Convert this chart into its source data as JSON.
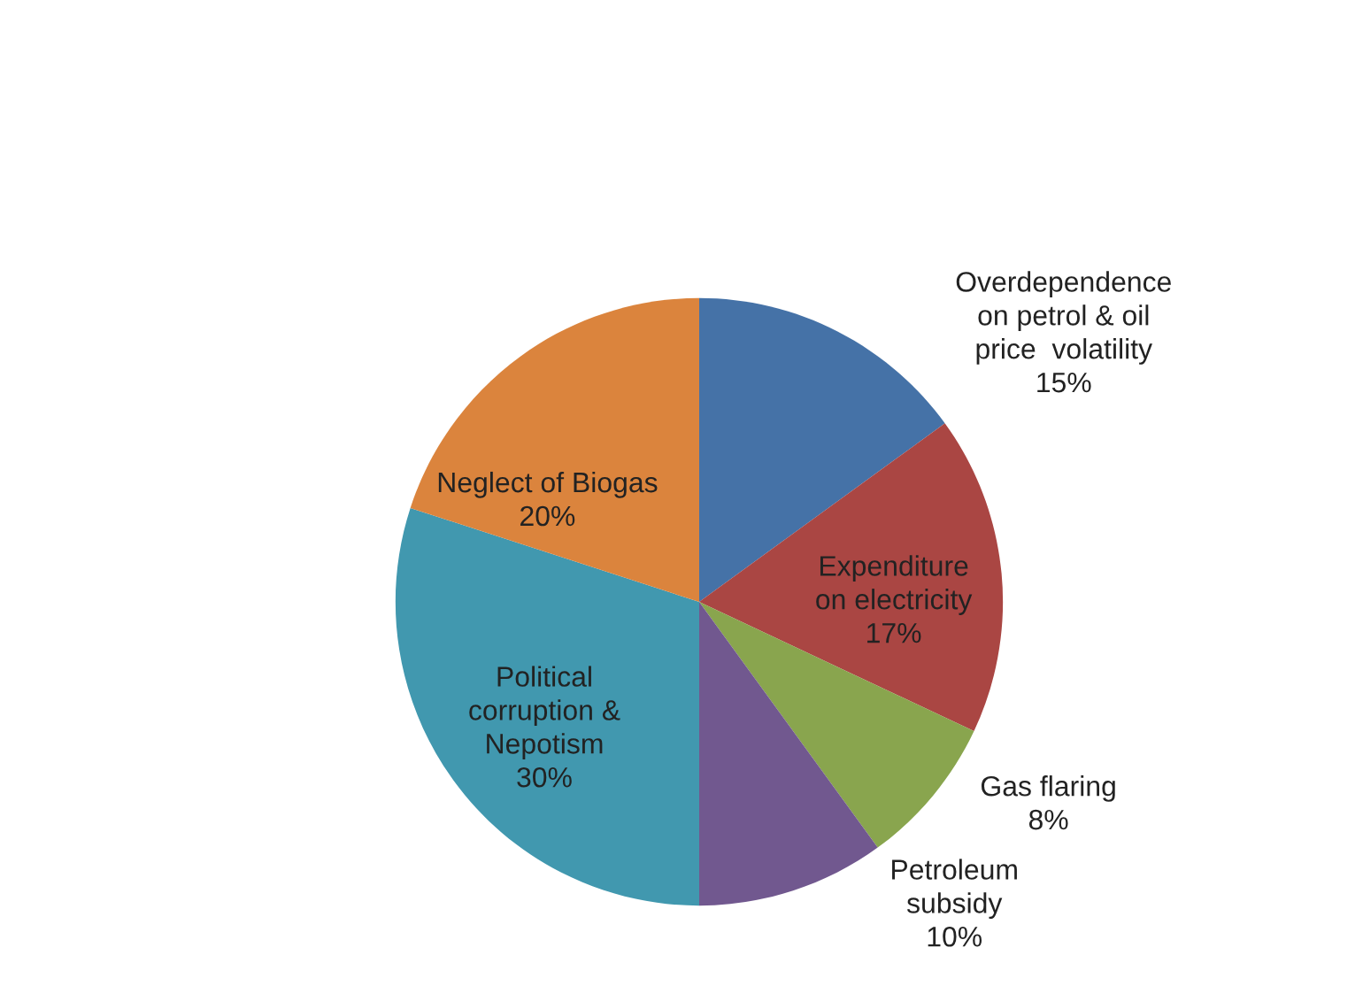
{
  "chart_data": {
    "type": "pie",
    "categories": [
      "Overdependence\non petrol & oil\nprice  volatility",
      "Expenditure\non electricity",
      "Gas flaring",
      "Petroleum\nsubsidy",
      "Political\ncorruption &\nNepotism",
      "Neglect of Biogas"
    ],
    "values": [
      15,
      17,
      8,
      10,
      30,
      20
    ],
    "colors": [
      "#4572a7",
      "#aa4643",
      "#89a54e",
      "#71588f",
      "#4198af",
      "#db843d"
    ],
    "value_labels": [
      "15%",
      "17%",
      "8%",
      "10%",
      "30%",
      "20%"
    ],
    "legend": false
  }
}
